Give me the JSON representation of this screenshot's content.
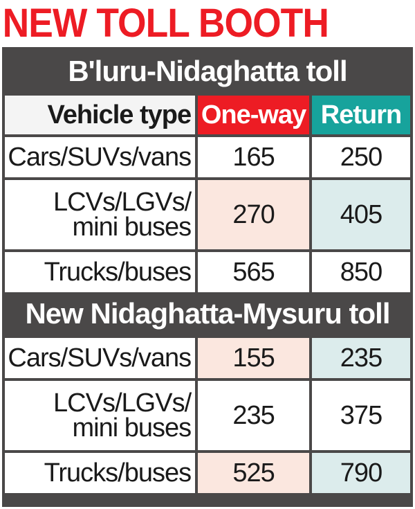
{
  "title": "NEW TOLL BOOTH",
  "colors": {
    "title": "#ed1c24",
    "one_way_header": "#ed1c24",
    "return_header": "#17a39c",
    "one_way_tint": "#fbe7df",
    "return_tint": "#dcecec",
    "frame": "#4a4848"
  },
  "chart_data": {
    "type": "table",
    "title": "NEW TOLL BOOTH",
    "columns": [
      "Vehicle type",
      "One-way",
      "Return"
    ],
    "sections": [
      {
        "name": "B'luru-Nidaghatta toll",
        "rows": [
          {
            "vehicle": "Cars/SUVs/vans",
            "one_way": 165,
            "return": 250
          },
          {
            "vehicle": "LCVs/LGVs/ mini buses",
            "one_way": 270,
            "return": 405
          },
          {
            "vehicle": "Trucks/buses",
            "one_way": 565,
            "return": 850
          }
        ]
      },
      {
        "name": "New Nidaghatta-Mysuru toll",
        "rows": [
          {
            "vehicle": "Cars/SUVs/vans",
            "one_way": 155,
            "return": 235
          },
          {
            "vehicle": "LCVs/LGVs/ mini buses",
            "one_way": 235,
            "return": 375
          },
          {
            "vehicle": "Trucks/buses",
            "one_way": 525,
            "return": 790
          }
        ]
      }
    ]
  }
}
